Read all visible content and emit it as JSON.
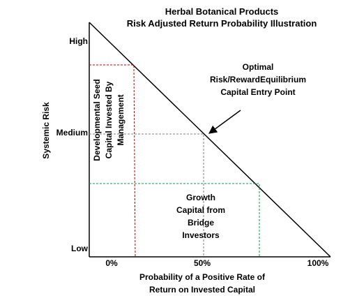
{
  "title": {
    "line1": "Herbal Botanical Products",
    "line2": "Risk Adjusted Return Probability Illustration"
  },
  "axes": {
    "y_label": "Systemic Risk",
    "y_ticks": {
      "high": "High",
      "medium": "Medium",
      "low": "Low"
    },
    "x_ticks": [
      "0%",
      "50%",
      "100%"
    ],
    "x_label_line1": "Probability of a Positive Rate of",
    "x_label_line2": "Return on Invested Capital"
  },
  "annotations": {
    "optimal_line1": "Optimal",
    "optimal_line2": "Risk/RewardEquilibrium",
    "optimal_line3": "Capital Entry Point",
    "seed_line1": "Developmental Seed",
    "seed_line2": "Capital Invested By",
    "seed_line3": "Management",
    "growth_line1": "Growth",
    "growth_line2": "Capital from",
    "growth_line3": "Bridge",
    "growth_line4": "Investors"
  },
  "colors": {
    "axis": "#000000",
    "seed_region": "#c00000",
    "medium_guide": "#7f7f7f",
    "growth_region": "#00a050"
  }
}
